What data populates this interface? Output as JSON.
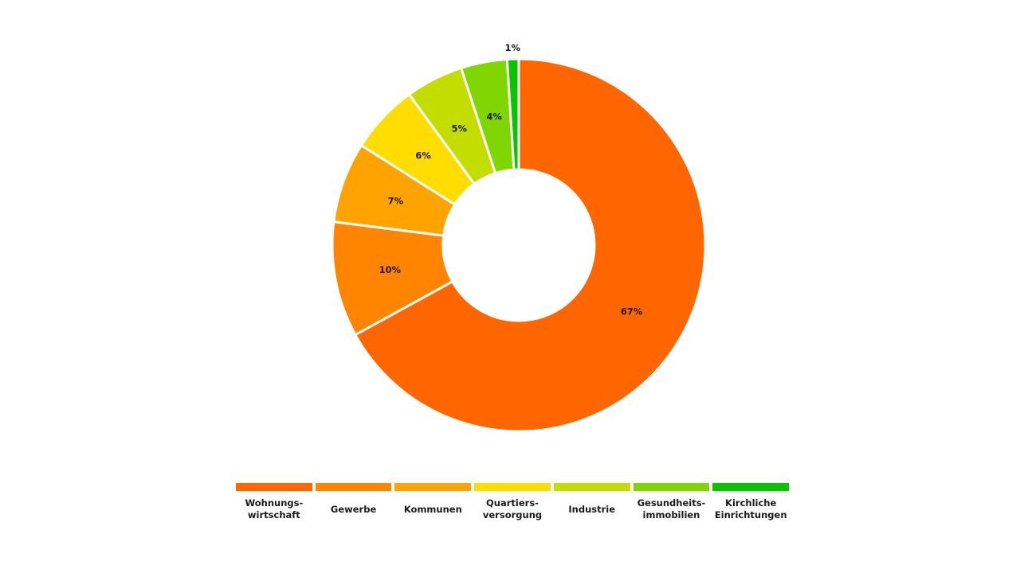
{
  "chart_data": {
    "type": "pie",
    "variant": "donut",
    "unit": "%",
    "categories": [
      "Wohnungs-\nwirtschaft",
      "Gewerbe",
      "Kommunen",
      "Quartiers-\nversorgung",
      "Industrie",
      "Gesundheits-\nimmobilien",
      "Kirchliche\nEinrichtungen"
    ],
    "values": [
      67,
      10,
      7,
      6,
      5,
      4,
      1
    ],
    "value_labels": [
      "67%",
      "10%",
      "7%",
      "6%",
      "5%",
      "4%",
      "1%"
    ],
    "colors": [
      "#ff6600",
      "#ff8400",
      "#ffa300",
      "#ffdd00",
      "#c3dd00",
      "#7fd600",
      "#0ac400"
    ],
    "legend_position": "bottom"
  }
}
